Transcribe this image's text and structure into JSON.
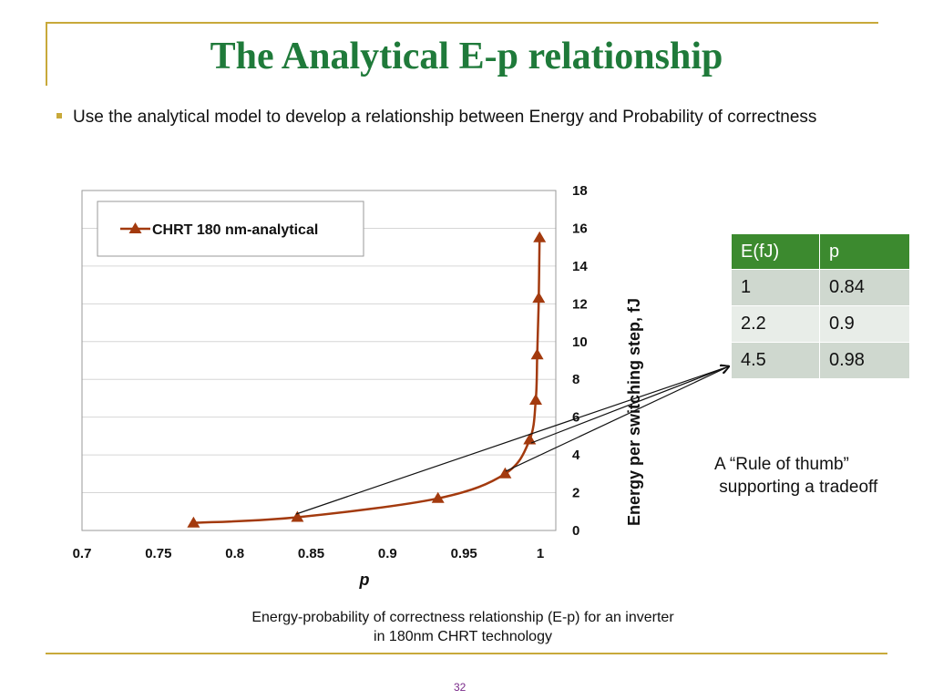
{
  "slide": {
    "title": "The Analytical E-p relationship",
    "bullet": "Use the analytical model to develop a relationship between Energy and Probability of correctness",
    "caption_line1": "Energy-probability of correctness relationship (E-p) for an inverter",
    "caption_line2": "in 180nm CHRT technology",
    "note_line1": "A “Rule of thumb”",
    "note_line2": " supporting a tradeoff",
    "page_number": "32"
  },
  "table": {
    "headers": [
      "E(fJ)",
      "p"
    ],
    "rows": [
      [
        "1",
        "0.84"
      ],
      [
        "2.2",
        "0.9"
      ],
      [
        "4.5",
        "0.98"
      ]
    ]
  },
  "colors": {
    "title": "#1f7a3a",
    "accent": "#c8a93a",
    "series": "#a33a0e",
    "table_header": "#3c8a2f"
  },
  "chart_data": {
    "type": "line",
    "title": "",
    "xlabel": "p",
    "ylabel": "Energy per switching step, fJ",
    "xlim": [
      0.7,
      1
    ],
    "ylim": [
      0,
      18
    ],
    "xticks": [
      "0.7",
      "0.75",
      "0.8",
      "0.85",
      "0.9",
      "0.95",
      "1"
    ],
    "yticks": [
      "0",
      "2",
      "4",
      "6",
      "8",
      "10",
      "12",
      "14",
      "16",
      "18"
    ],
    "y_axis_position": "right",
    "grid": "horizontal",
    "legend_position": "top-left",
    "series": [
      {
        "name": "CHRT 180 nm-analytical",
        "marker": "triangle",
        "x": [
          0.773,
          0.841,
          0.933,
          0.977,
          0.993,
          0.997,
          0.998,
          0.999,
          0.9995
        ],
        "y": [
          0.4,
          0.7,
          1.7,
          3.0,
          4.8,
          6.9,
          9.3,
          12.3,
          15.5
        ]
      }
    ]
  }
}
